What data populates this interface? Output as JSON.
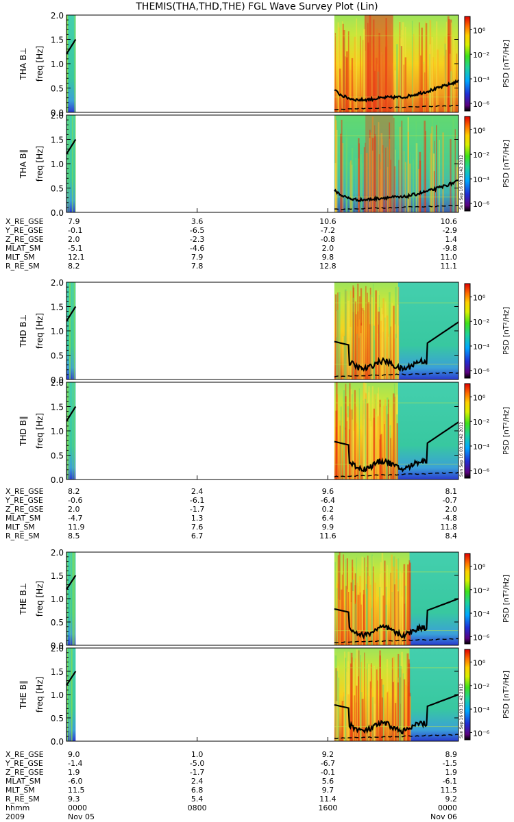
{
  "chart_data": {
    "type": "heatmap",
    "title": "THEMIS(THA,THD,THE) FGL Wave Survey Plot (Lin)",
    "time_range": [
      "0000 2009 Nov 05",
      "0000 Nov 06"
    ],
    "x_ticks": [
      "0000",
      "0800",
      "1600",
      "0000"
    ],
    "freq_range_hz": [
      0.0,
      2.0
    ],
    "y_ticks": [
      "0.0",
      "0.5",
      "1.0",
      "1.5",
      "2.0"
    ],
    "ylabel": "freq [Hz]",
    "colorbar": {
      "label": "PSD [nT²/Hz]",
      "scale": "log",
      "range": [
        1e-06,
        10.0
      ],
      "tick_labels": [
        "10⁰",
        "10⁻²",
        "10⁻⁴",
        "10⁻⁶"
      ]
    },
    "timestamp_label": "Sun Sep 16 03:31:42 2012",
    "panels": [
      {
        "name": "THA B⊥"
      },
      {
        "name": "THA B∥"
      },
      {
        "name": "THD B⊥"
      },
      {
        "name": "THD B∥"
      },
      {
        "name": "THE B⊥"
      },
      {
        "name": "THE B∥"
      }
    ],
    "ephemeris": [
      {
        "probe": "THA",
        "rows": [
          {
            "label": "X_RE_GSE",
            "values": [
              "7.9",
              "3.6",
              "10.6",
              "10.6"
            ]
          },
          {
            "label": "Y_RE_GSE",
            "values": [
              "-0.1",
              "-6.5",
              "-7.2",
              "-2.9"
            ]
          },
          {
            "label": "Z_RE_GSE",
            "values": [
              "2.0",
              "-2.3",
              "-0.8",
              "1.4"
            ]
          },
          {
            "label": "MLAT_SM",
            "values": [
              "-5.1",
              "-4.6",
              "2.0",
              "-9.8"
            ]
          },
          {
            "label": "MLT_SM",
            "values": [
              "12.1",
              "7.9",
              "9.8",
              "11.0"
            ]
          },
          {
            "label": "R_RE_SM",
            "values": [
              "8.2",
              "7.8",
              "12.8",
              "11.1"
            ]
          }
        ]
      },
      {
        "probe": "THD",
        "rows": [
          {
            "label": "X_RE_GSE",
            "values": [
              "8.2",
              "2.4",
              "9.6",
              "8.1"
            ]
          },
          {
            "label": "Y_RE_GSE",
            "values": [
              "-0.6",
              "-6.1",
              "-6.4",
              "-0.7"
            ]
          },
          {
            "label": "Z_RE_GSE",
            "values": [
              "2.0",
              "-1.7",
              "0.2",
              "2.0"
            ]
          },
          {
            "label": "MLAT_SM",
            "values": [
              "-4.7",
              "1.3",
              "6.4",
              "-4.8"
            ]
          },
          {
            "label": "MLT_SM",
            "values": [
              "11.9",
              "7.6",
              "9.9",
              "11.8"
            ]
          },
          {
            "label": "R_RE_SM",
            "values": [
              "8.5",
              "6.7",
              "11.6",
              "8.4"
            ]
          }
        ]
      },
      {
        "probe": "THE",
        "rows": [
          {
            "label": "X_RE_GSE",
            "values": [
              "9.0",
              "1.0",
              "9.2",
              "8.9"
            ]
          },
          {
            "label": "Y_RE_GSE",
            "values": [
              "-1.4",
              "-5.0",
              "-6.7",
              "-1.5"
            ]
          },
          {
            "label": "Z_RE_GSE",
            "values": [
              "1.9",
              "-1.7",
              "-0.1",
              "1.9"
            ]
          },
          {
            "label": "MLAT_SM",
            "values": [
              "-6.0",
              "2.4",
              "5.6",
              "-6.1"
            ]
          },
          {
            "label": "MLT_SM",
            "values": [
              "11.5",
              "6.8",
              "9.7",
              "11.5"
            ]
          },
          {
            "label": "R_RE_SM",
            "values": [
              "9.3",
              "5.4",
              "11.4",
              "9.2"
            ]
          }
        ]
      }
    ],
    "time_axis_labels": {
      "row1": [
        "hhmm",
        "0000",
        "0800",
        "1600",
        "0000"
      ],
      "row2": [
        "2009",
        "Nov 05",
        "",
        "",
        "Nov 06"
      ]
    },
    "data_coverage_hours": [
      [
        0.0,
        0.1
      ],
      [
        16.4,
        24.0
      ]
    ]
  }
}
